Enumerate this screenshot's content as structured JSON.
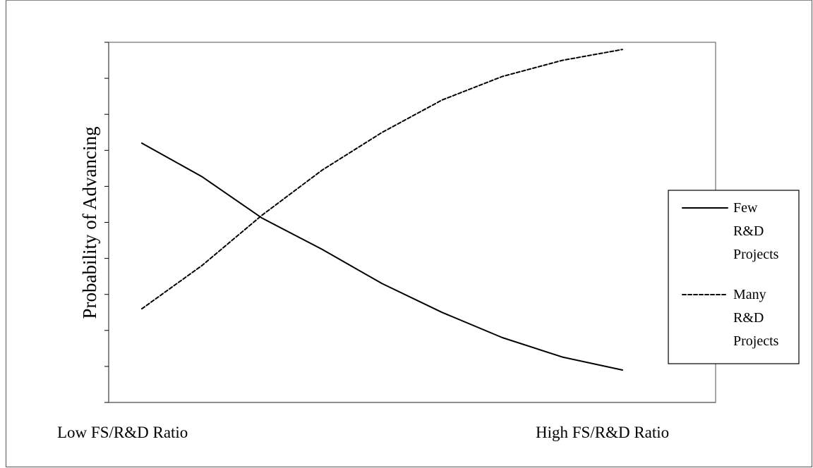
{
  "chart_data": {
    "type": "line",
    "title": "",
    "xlabel_low": "Low FS/R&D Ratio",
    "xlabel_high": "High FS/R&D Ratio",
    "ylabel": "Probability of Advancing",
    "x": [
      0,
      1,
      2,
      3,
      4,
      5,
      6,
      7,
      8
    ],
    "xlim": [
      0,
      8
    ],
    "ylim": [
      0,
      10
    ],
    "y_tick_count": 11,
    "grid": false,
    "legend_position": "right",
    "series": [
      {
        "name": "Few R&D Projects",
        "name_lines": [
          "Few",
          "R&D",
          "Projects"
        ],
        "style": "solid",
        "color": "#000000",
        "values": [
          7.2,
          6.27,
          5.12,
          4.25,
          3.3,
          2.5,
          1.8,
          1.26,
          0.9
        ]
      },
      {
        "name": "Many R&D Projects",
        "name_lines": [
          "Many",
          "R&D",
          "Projects"
        ],
        "style": "dashed",
        "color": "#000000",
        "values": [
          2.6,
          3.8,
          5.2,
          6.45,
          7.5,
          8.4,
          9.05,
          9.5,
          9.8
        ]
      }
    ]
  }
}
